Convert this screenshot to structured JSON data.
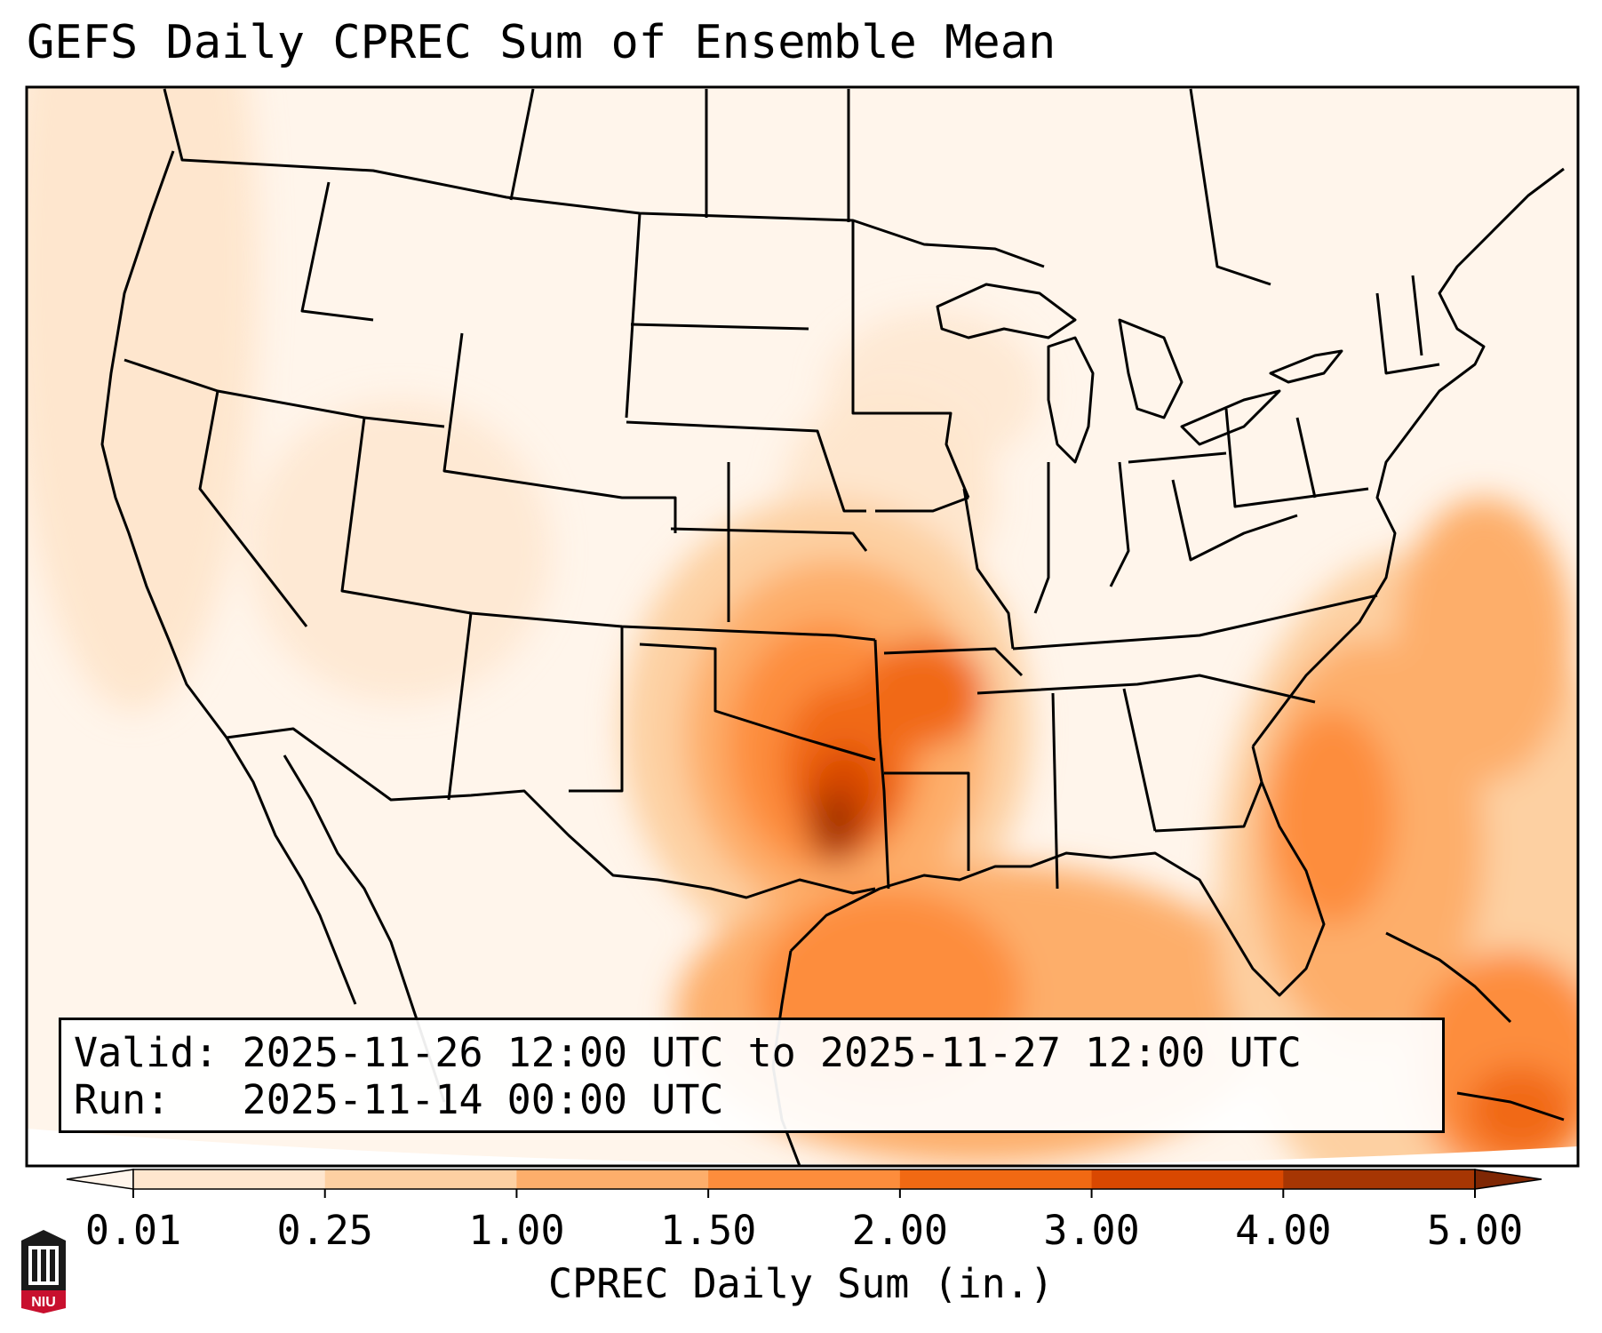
{
  "title": "GEFS Daily CPREC Sum of Ensemble Mean",
  "info": {
    "valid_label": "Valid:",
    "valid_value": "2025-11-26 12:00 UTC to 2025-11-27 12:00 UTC",
    "run_label": "Run:",
    "run_value": "2025-11-14 00:00 UTC"
  },
  "colorbar": {
    "label": "CPREC Daily Sum (in.)",
    "ticks": [
      "0.01",
      "0.25",
      "1.00",
      "1.50",
      "2.00",
      "3.00",
      "4.00",
      "5.00"
    ],
    "colors": [
      "#fff5eb",
      "#fee6ce",
      "#fdd0a2",
      "#fdae6b",
      "#fd8d3c",
      "#f16913",
      "#d94801",
      "#a63603",
      "#7f2704"
    ]
  },
  "logo": {
    "text": "NIU"
  }
}
